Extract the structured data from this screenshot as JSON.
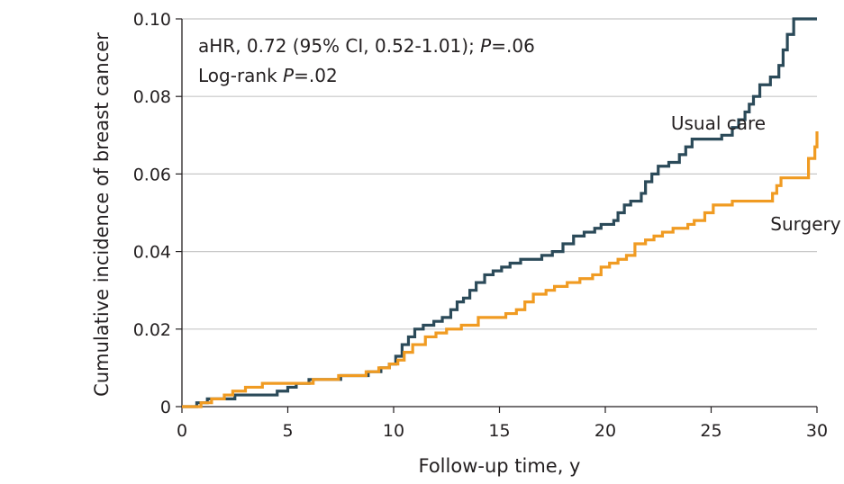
{
  "chart_data": {
    "type": "line",
    "step": true,
    "title": "",
    "xlabel": "Follow-up time, y",
    "ylabel": "Cumulative incidence of breast cancer",
    "xlim": [
      0,
      30
    ],
    "ylim": [
      0,
      0.1
    ],
    "x_ticks": [
      0,
      5,
      10,
      15,
      20,
      25,
      30
    ],
    "x_tick_labels": [
      "0",
      "5",
      "10",
      "15",
      "20",
      "25",
      "30"
    ],
    "y_ticks": [
      0,
      0.02,
      0.04,
      0.06,
      0.08,
      0.1
    ],
    "y_tick_labels": [
      "0",
      "0.02",
      "0.04",
      "0.06",
      "0.08",
      "0.10"
    ],
    "grid": "horizontal",
    "annotations": [
      {
        "id": "ahr",
        "parts": [
          {
            "text": "aHR, 0.72 (95% CI, 0.52-1.01); ",
            "italic": false
          },
          {
            "text": "P",
            "italic": true
          },
          {
            "text": "=.06",
            "italic": false
          }
        ]
      },
      {
        "id": "logrank",
        "parts": [
          {
            "text": "Log-rank ",
            "italic": false
          },
          {
            "text": "P",
            "italic": true
          },
          {
            "text": "=.02",
            "italic": false
          }
        ]
      }
    ],
    "series": [
      {
        "name": "Usual care",
        "color": "#2b4a59",
        "points": [
          [
            0,
            0
          ],
          [
            0.7,
            0.001
          ],
          [
            1.2,
            0.002
          ],
          [
            2.0,
            0.002
          ],
          [
            2.5,
            0.003
          ],
          [
            3.5,
            0.003
          ],
          [
            4.5,
            0.004
          ],
          [
            5.0,
            0.005
          ],
          [
            5.4,
            0.006
          ],
          [
            6.0,
            0.007
          ],
          [
            7.0,
            0.007
          ],
          [
            7.5,
            0.008
          ],
          [
            8.5,
            0.008
          ],
          [
            8.8,
            0.009
          ],
          [
            9.4,
            0.01
          ],
          [
            9.8,
            0.011
          ],
          [
            10.1,
            0.013
          ],
          [
            10.4,
            0.016
          ],
          [
            10.7,
            0.018
          ],
          [
            11.0,
            0.02
          ],
          [
            11.4,
            0.021
          ],
          [
            11.9,
            0.022
          ],
          [
            12.3,
            0.023
          ],
          [
            12.7,
            0.025
          ],
          [
            13.0,
            0.027
          ],
          [
            13.3,
            0.028
          ],
          [
            13.6,
            0.03
          ],
          [
            13.9,
            0.032
          ],
          [
            14.3,
            0.034
          ],
          [
            14.7,
            0.035
          ],
          [
            15.1,
            0.036
          ],
          [
            15.5,
            0.037
          ],
          [
            16.0,
            0.038
          ],
          [
            17.0,
            0.039
          ],
          [
            17.5,
            0.04
          ],
          [
            18.0,
            0.042
          ],
          [
            18.5,
            0.044
          ],
          [
            19.0,
            0.045
          ],
          [
            19.5,
            0.046
          ],
          [
            19.8,
            0.047
          ],
          [
            20.4,
            0.048
          ],
          [
            20.6,
            0.05
          ],
          [
            20.9,
            0.052
          ],
          [
            21.2,
            0.053
          ],
          [
            21.7,
            0.055
          ],
          [
            21.9,
            0.058
          ],
          [
            22.2,
            0.06
          ],
          [
            22.5,
            0.062
          ],
          [
            23.0,
            0.063
          ],
          [
            23.5,
            0.065
          ],
          [
            23.8,
            0.067
          ],
          [
            24.1,
            0.069
          ],
          [
            25.5,
            0.07
          ],
          [
            26.0,
            0.072
          ],
          [
            26.3,
            0.074
          ],
          [
            26.6,
            0.076
          ],
          [
            26.8,
            0.078
          ],
          [
            27.0,
            0.08
          ],
          [
            27.3,
            0.083
          ],
          [
            27.8,
            0.085
          ],
          [
            28.2,
            0.088
          ],
          [
            28.4,
            0.092
          ],
          [
            28.6,
            0.096
          ],
          [
            28.9,
            0.1
          ],
          [
            30.0,
            0.1
          ]
        ]
      },
      {
        "name": "Surgery",
        "color": "#f09b22",
        "points": [
          [
            0,
            0
          ],
          [
            0.9,
            0.001
          ],
          [
            1.4,
            0.002
          ],
          [
            2.0,
            0.003
          ],
          [
            2.4,
            0.004
          ],
          [
            3.0,
            0.005
          ],
          [
            3.8,
            0.006
          ],
          [
            5.0,
            0.006
          ],
          [
            5.9,
            0.006
          ],
          [
            6.2,
            0.007
          ],
          [
            7.4,
            0.008
          ],
          [
            8.7,
            0.009
          ],
          [
            9.3,
            0.01
          ],
          [
            9.8,
            0.011
          ],
          [
            10.2,
            0.012
          ],
          [
            10.5,
            0.014
          ],
          [
            10.9,
            0.016
          ],
          [
            11.5,
            0.018
          ],
          [
            12.0,
            0.019
          ],
          [
            12.5,
            0.02
          ],
          [
            13.2,
            0.021
          ],
          [
            14.0,
            0.023
          ],
          [
            15.0,
            0.023
          ],
          [
            15.3,
            0.024
          ],
          [
            15.8,
            0.025
          ],
          [
            16.2,
            0.027
          ],
          [
            16.6,
            0.029
          ],
          [
            17.2,
            0.03
          ],
          [
            17.6,
            0.031
          ],
          [
            18.2,
            0.032
          ],
          [
            18.8,
            0.033
          ],
          [
            19.4,
            0.034
          ],
          [
            19.8,
            0.036
          ],
          [
            20.2,
            0.037
          ],
          [
            20.6,
            0.038
          ],
          [
            21.0,
            0.039
          ],
          [
            21.4,
            0.042
          ],
          [
            21.9,
            0.043
          ],
          [
            22.3,
            0.044
          ],
          [
            22.7,
            0.045
          ],
          [
            23.2,
            0.046
          ],
          [
            23.9,
            0.047
          ],
          [
            24.2,
            0.048
          ],
          [
            24.7,
            0.05
          ],
          [
            25.1,
            0.052
          ],
          [
            26.0,
            0.053
          ],
          [
            27.5,
            0.053
          ],
          [
            27.9,
            0.055
          ],
          [
            28.1,
            0.057
          ],
          [
            28.3,
            0.059
          ],
          [
            29.5,
            0.059
          ],
          [
            29.6,
            0.064
          ],
          [
            29.9,
            0.067
          ],
          [
            30.0,
            0.071
          ]
        ]
      }
    ],
    "series_labels": [
      {
        "series": "Usual care",
        "anchor": [
          23.1,
          0.0715
        ]
      },
      {
        "series": "Surgery",
        "anchor": [
          27.8,
          0.0455
        ]
      }
    ]
  }
}
